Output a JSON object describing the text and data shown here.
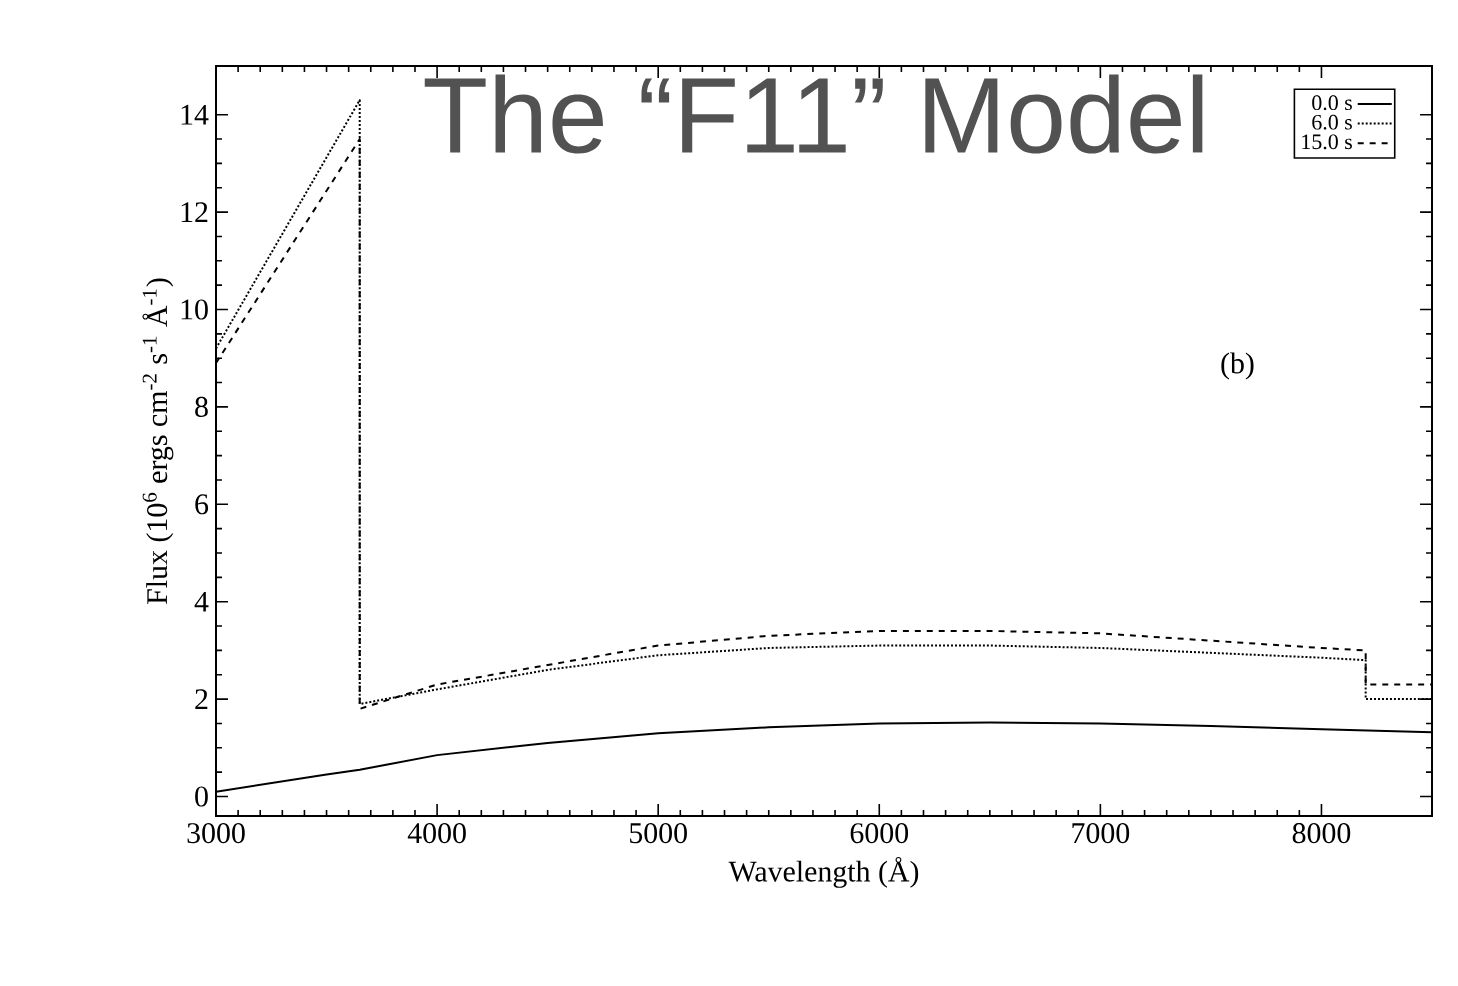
{
  "chart_data": {
    "type": "line",
    "title": "The “F11” Model",
    "xlabel": "Wavelength (Å)",
    "ylabel": "Flux (10$^{6}$ ergs cm$^{-2}$ s$^{-1}$ Å$^{-1}$)",
    "annotations": [
      "(b)"
    ],
    "xlim": [
      3000,
      8500
    ],
    "ylim": [
      -0.4,
      15
    ],
    "xticks": [
      3000,
      4000,
      5000,
      6000,
      7000,
      8000
    ],
    "yticks": [
      0,
      2,
      4,
      6,
      8,
      10,
      12,
      14
    ],
    "grid": false,
    "legend": "top right",
    "marker": "none",
    "series": [
      {
        "name": "0.0 s",
        "color": "#000000",
        "line_style": "solid",
        "x": [
          3000,
          3500,
          3650,
          4000,
          4500,
          5000,
          5500,
          6000,
          6500,
          7000,
          7500,
          8000,
          8500
        ],
        "values": [
          0.1,
          0.45,
          0.55,
          0.85,
          1.1,
          1.3,
          1.42,
          1.5,
          1.52,
          1.5,
          1.45,
          1.38,
          1.32
        ]
      },
      {
        "name": "6.0 s",
        "color": "#000000",
        "line_style": "dotted",
        "x": [
          3000,
          3650,
          3650,
          4000,
          4500,
          5000,
          5500,
          6000,
          6500,
          7000,
          7500,
          8000,
          8200,
          8200,
          8500
        ],
        "values": [
          9.2,
          14.3,
          1.9,
          2.2,
          2.6,
          2.9,
          3.05,
          3.1,
          3.1,
          3.05,
          2.95,
          2.85,
          2.8,
          2.0,
          2.0
        ]
      },
      {
        "name": "15.0 s",
        "color": "#000000",
        "line_style": "dashed",
        "x": [
          3000,
          3650,
          3650,
          4000,
          4500,
          5000,
          5500,
          6000,
          6500,
          7000,
          7500,
          8000,
          8200,
          8200,
          8500
        ],
        "values": [
          8.9,
          13.5,
          1.8,
          2.3,
          2.7,
          3.1,
          3.3,
          3.4,
          3.4,
          3.35,
          3.2,
          3.05,
          3.0,
          2.3,
          2.3
        ]
      }
    ]
  }
}
